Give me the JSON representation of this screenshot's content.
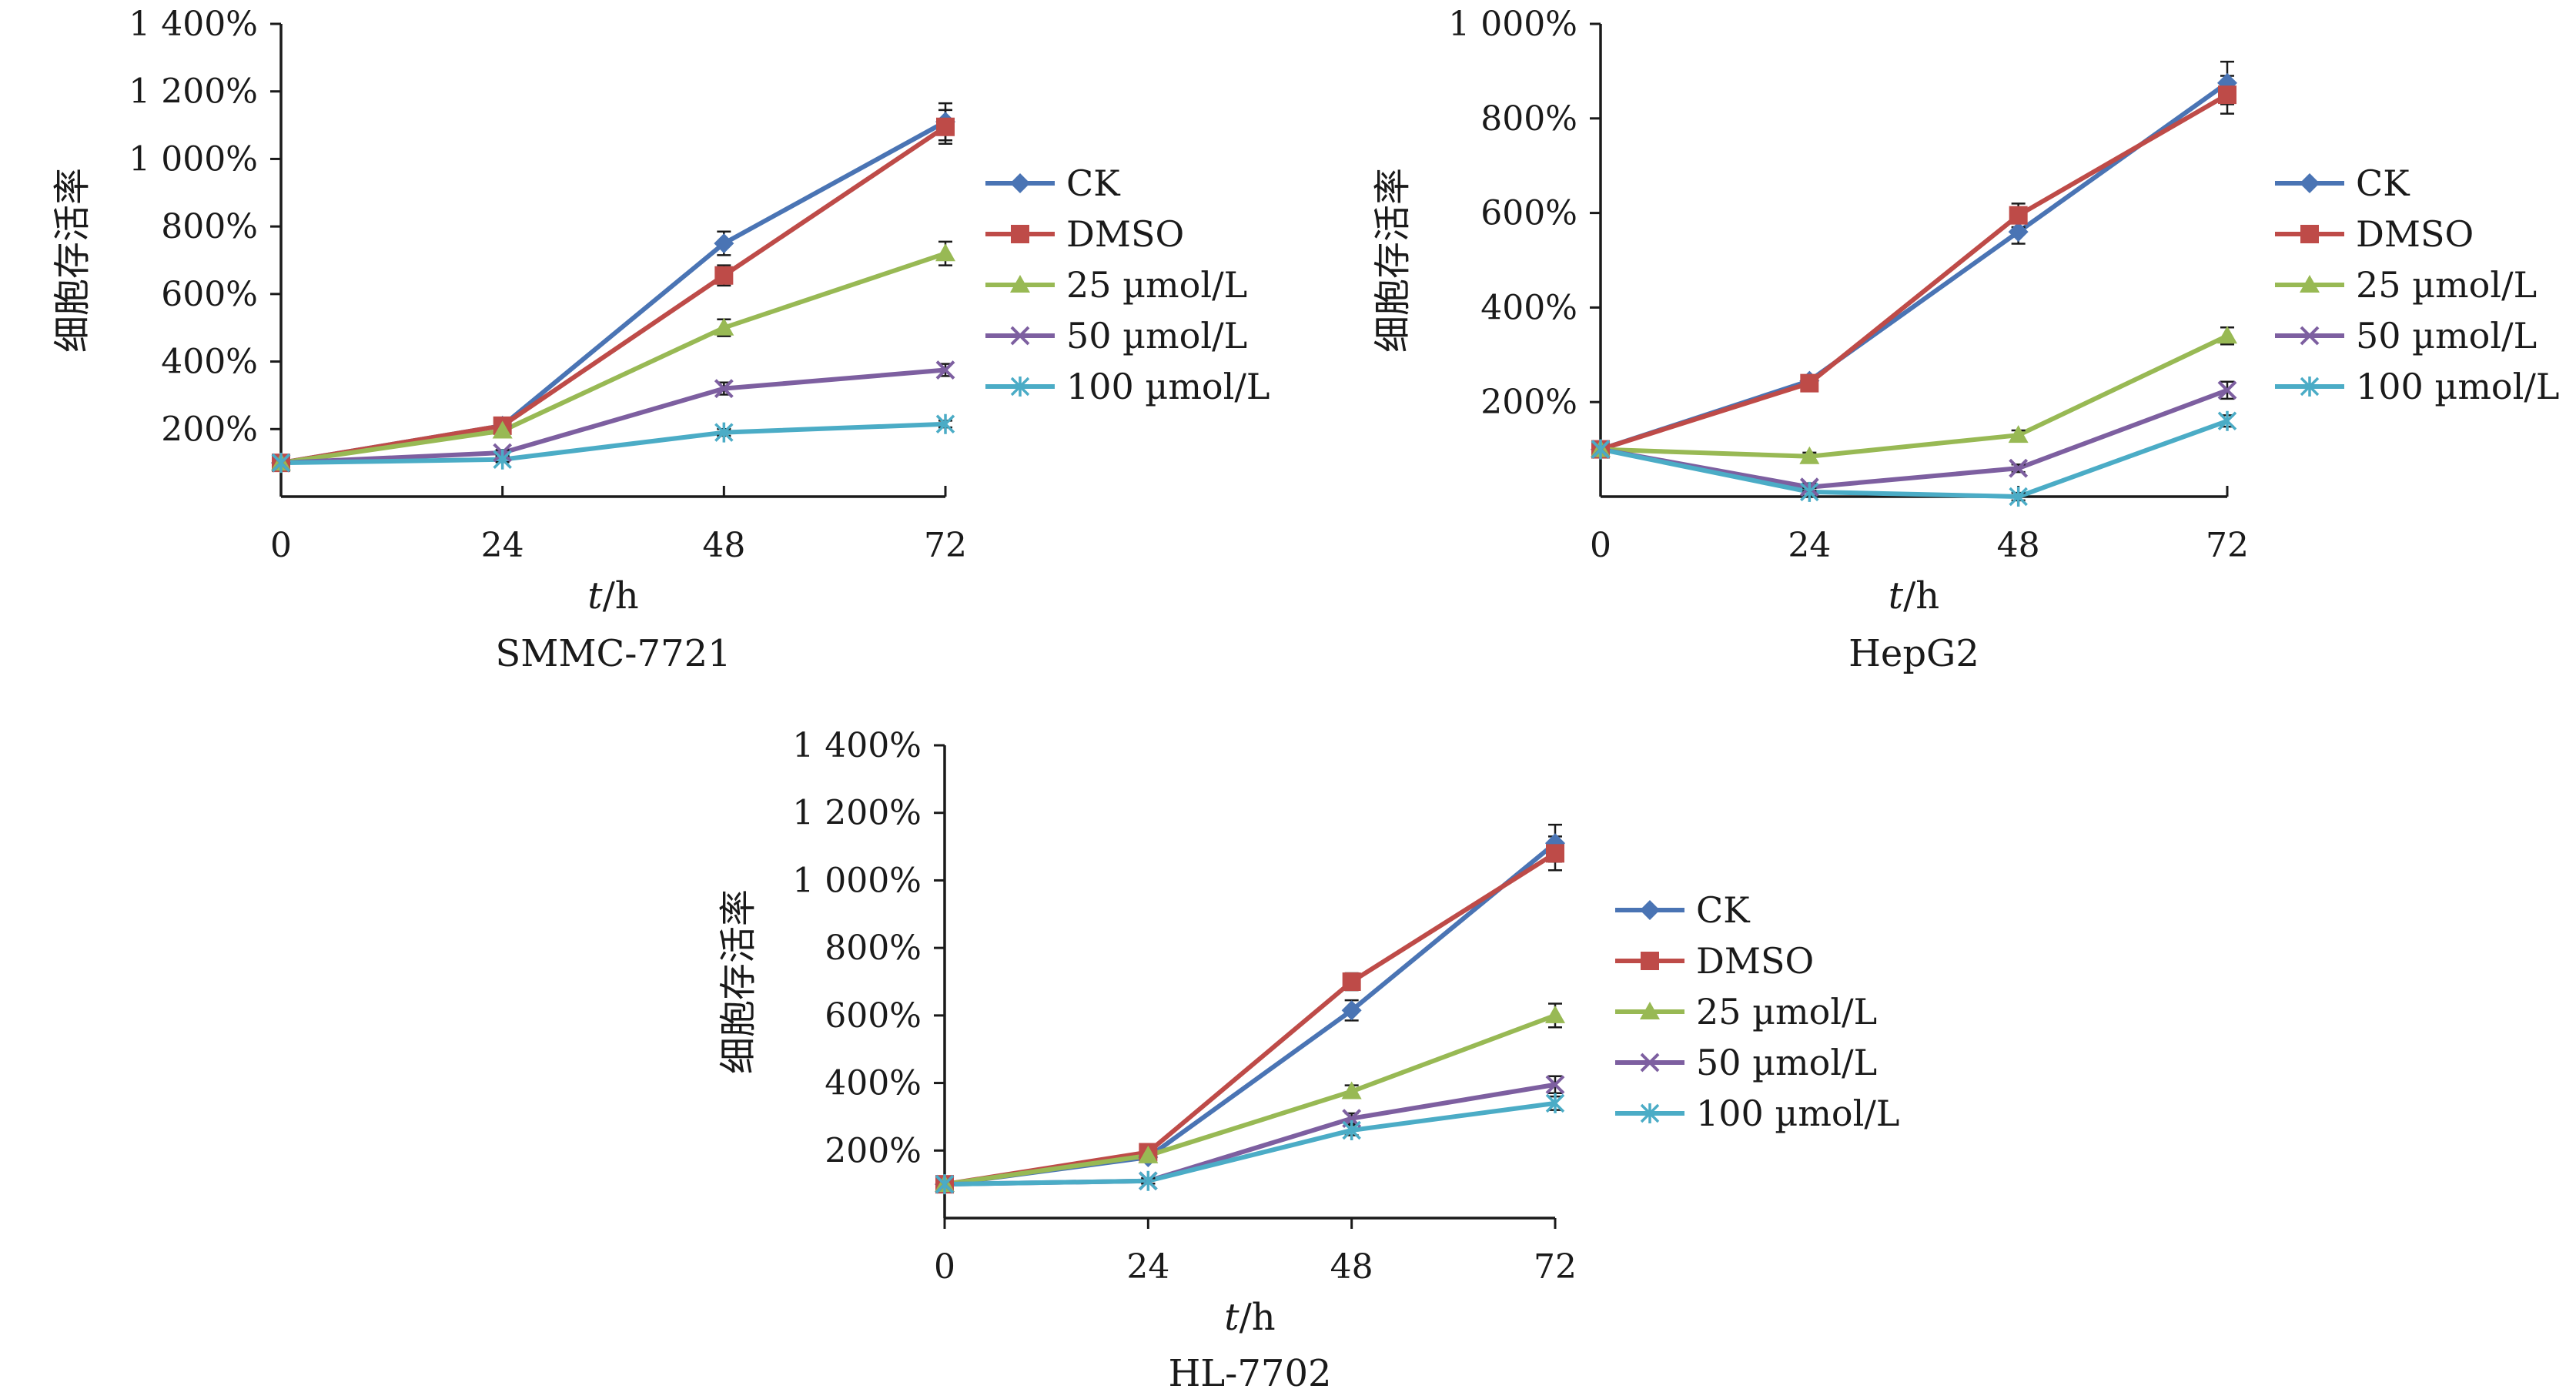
{
  "colors": {
    "CK": "#4a74b4",
    "DMSO": "#be4b48",
    "25 µmol/L": "#98b954",
    "50 µmol/L": "#7d5fa0",
    "100 µmol/L": "#4bacc6",
    "axis": "#1a1a1a"
  },
  "markers": {
    "CK": "diamond",
    "DMSO": "square",
    "25 µmol/L": "triangle",
    "50 µmol/L": "x",
    "100 µmol/L": "star"
  },
  "chart_data": [
    {
      "type": "line",
      "title": "SMMC-7721",
      "xlabel_italic": "t",
      "xlabel_rest": "/h",
      "ylabel": "细胞存活率",
      "x": [
        0,
        24,
        48,
        72
      ],
      "xticks": [
        "0",
        "24",
        "48",
        "72"
      ],
      "ylim": [
        0,
        1400
      ],
      "yticks": [
        {
          "value": 200,
          "label": "200%"
        },
        {
          "value": 400,
          "label": "400%"
        },
        {
          "value": 600,
          "label": "600%"
        },
        {
          "value": 800,
          "label": "800%"
        },
        {
          "value": 1000,
          "label": "1 000%"
        },
        {
          "value": 1200,
          "label": "1 200%"
        },
        {
          "value": 1400,
          "label": "1 400%"
        }
      ],
      "legend_position": "right",
      "series": [
        {
          "name": "CK",
          "values": [
            100,
            210,
            750,
            1110
          ],
          "errors": [
            0,
            10,
            35,
            55
          ]
        },
        {
          "name": "DMSO",
          "values": [
            100,
            210,
            655,
            1095
          ],
          "errors": [
            0,
            10,
            30,
            50
          ]
        },
        {
          "name": "25 µmol/L",
          "values": [
            100,
            195,
            500,
            720
          ],
          "errors": [
            0,
            10,
            25,
            35
          ]
        },
        {
          "name": "50 µmol/L",
          "values": [
            100,
            130,
            320,
            375
          ],
          "errors": [
            0,
            8,
            18,
            18
          ]
        },
        {
          "name": "100 µmol/L",
          "values": [
            100,
            110,
            190,
            215
          ],
          "errors": [
            0,
            8,
            10,
            10
          ]
        }
      ]
    },
    {
      "type": "line",
      "title": "HepG2",
      "xlabel_italic": "t",
      "xlabel_rest": "/h",
      "ylabel": "细胞存活率",
      "x": [
        0,
        24,
        48,
        72
      ],
      "xticks": [
        "0",
        "24",
        "48",
        "72"
      ],
      "ylim": [
        0,
        1000
      ],
      "yticks": [
        {
          "value": 200,
          "label": "200%"
        },
        {
          "value": 400,
          "label": "400%"
        },
        {
          "value": 600,
          "label": "600%"
        },
        {
          "value": 800,
          "label": "800%"
        },
        {
          "value": 1000,
          "label": "1 000%"
        }
      ],
      "legend_position": "right",
      "series": [
        {
          "name": "CK",
          "values": [
            100,
            245,
            560,
            875
          ],
          "errors": [
            0,
            10,
            25,
            45
          ]
        },
        {
          "name": "DMSO",
          "values": [
            100,
            240,
            595,
            850
          ],
          "errors": [
            0,
            10,
            25,
            40
          ]
        },
        {
          "name": "25 µmol/L",
          "values": [
            100,
            85,
            130,
            340
          ],
          "errors": [
            0,
            8,
            10,
            18
          ]
        },
        {
          "name": "50 µmol/L",
          "values": [
            100,
            20,
            60,
            225
          ],
          "errors": [
            0,
            8,
            8,
            18
          ]
        },
        {
          "name": "100 µmol/L",
          "values": [
            100,
            10,
            0,
            160
          ],
          "errors": [
            0,
            8,
            8,
            12
          ]
        }
      ]
    },
    {
      "type": "line",
      "title": "HL-7702",
      "xlabel_italic": "t",
      "xlabel_rest": "/h",
      "ylabel": "细胞存活率",
      "x": [
        0,
        24,
        48,
        72
      ],
      "xticks": [
        "0",
        "24",
        "48",
        "72"
      ],
      "ylim": [
        0,
        1400
      ],
      "yticks": [
        {
          "value": 200,
          "label": "200%"
        },
        {
          "value": 400,
          "label": "400%"
        },
        {
          "value": 600,
          "label": "600%"
        },
        {
          "value": 800,
          "label": "800%"
        },
        {
          "value": 1000,
          "label": "1 000%"
        },
        {
          "value": 1200,
          "label": "1 200%"
        },
        {
          "value": 1400,
          "label": "1 400%"
        }
      ],
      "legend_position": "right",
      "series": [
        {
          "name": "CK",
          "values": [
            100,
            180,
            615,
            1110
          ],
          "errors": [
            0,
            10,
            30,
            55
          ]
        },
        {
          "name": "DMSO",
          "values": [
            100,
            195,
            700,
            1080
          ],
          "errors": [
            0,
            10,
            25,
            50
          ]
        },
        {
          "name": "25 µmol/L",
          "values": [
            100,
            185,
            375,
            600
          ],
          "errors": [
            0,
            10,
            18,
            35
          ]
        },
        {
          "name": "50 µmol/L",
          "values": [
            100,
            110,
            295,
            395
          ],
          "errors": [
            0,
            8,
            15,
            25
          ]
        },
        {
          "name": "100 µmol/L",
          "values": [
            100,
            110,
            260,
            340
          ],
          "errors": [
            0,
            8,
            15,
            20
          ]
        }
      ]
    }
  ]
}
